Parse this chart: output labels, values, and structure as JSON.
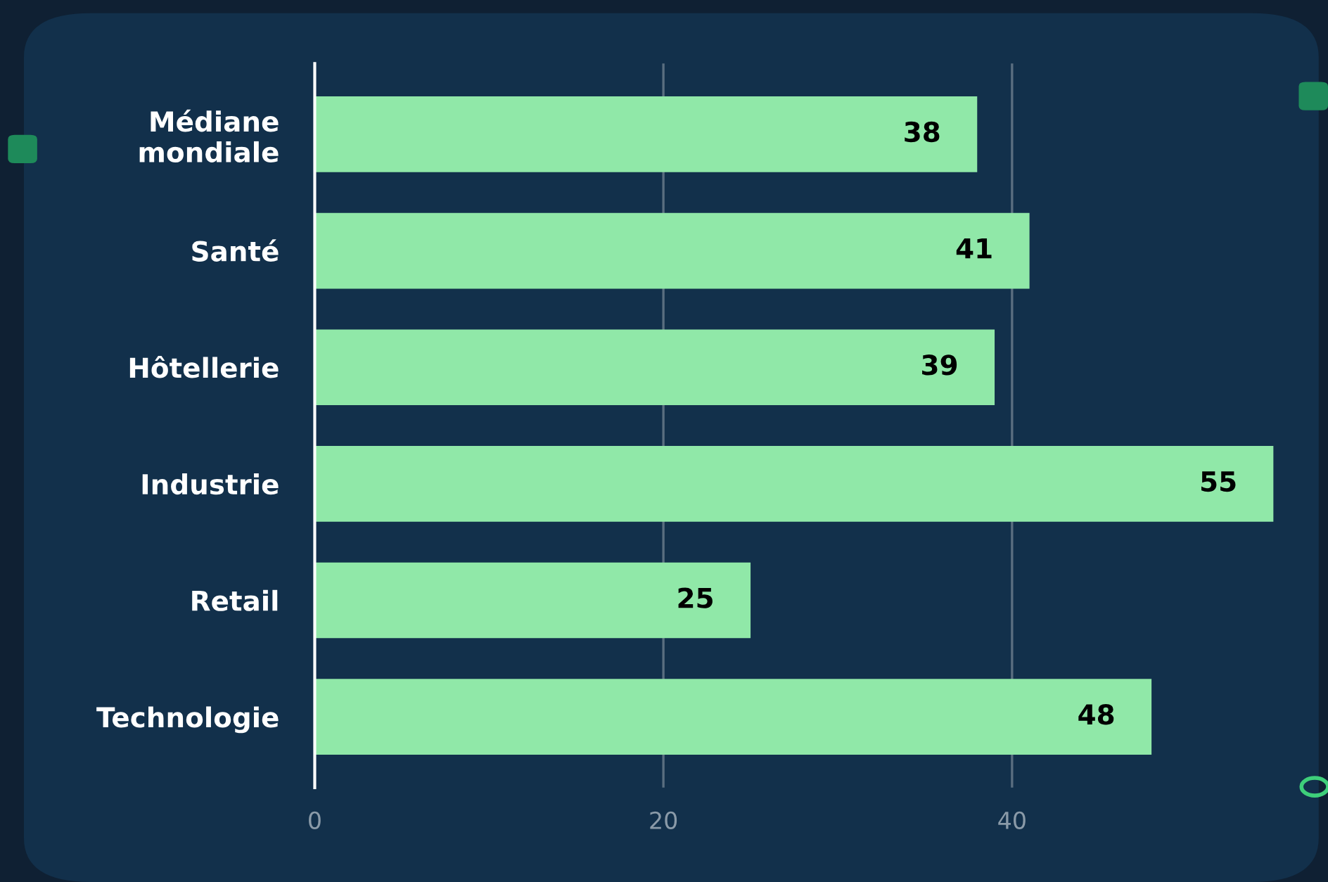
{
  "chart_data": {
    "type": "bar",
    "orientation": "horizontal",
    "categories": [
      "Médiane\nmondiale",
      "Santé",
      "Hôtellerie",
      "Industrie",
      "Retail",
      "Technologie"
    ],
    "values": [
      38,
      41,
      39,
      55,
      25,
      48
    ],
    "color": "#90e8a8",
    "xlim": [
      0,
      55
    ],
    "xticks": [
      0,
      20,
      40
    ],
    "grid": "x",
    "data_labels": true
  }
}
